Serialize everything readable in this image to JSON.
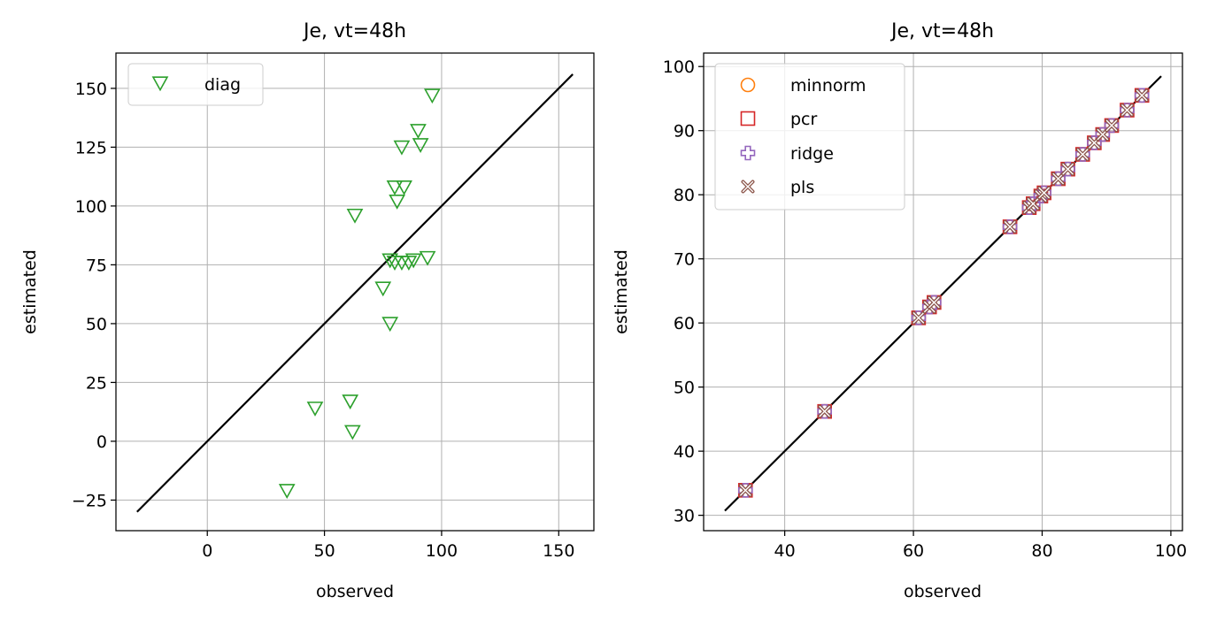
{
  "chart_data": [
    {
      "type": "scatter",
      "title": "Je, vt=48h",
      "xlabel": "observed",
      "ylabel": "estimated",
      "xlim": [
        -39,
        165
      ],
      "ylim": [
        -38,
        165
      ],
      "xticks": [
        0,
        50,
        100,
        150
      ],
      "yticks": [
        -25,
        0,
        25,
        50,
        75,
        100,
        125,
        150
      ],
      "tick_labels_x": [
        "0",
        "50",
        "100",
        "150"
      ],
      "tick_labels_y": [
        "−25",
        "0",
        "25",
        "50",
        "75",
        "100",
        "125",
        "150"
      ],
      "grid": true,
      "legend_position": "upper-left",
      "identity_line": [
        -30,
        156
      ],
      "series": [
        {
          "name": "diag",
          "marker": "triangle-down",
          "color": "#2ca02c",
          "x": [
            96,
            90,
            91,
            83,
            80,
            84,
            81,
            63,
            78,
            80,
            83,
            86,
            88,
            94,
            75,
            78,
            46,
            61,
            62,
            34
          ],
          "y": [
            147,
            132,
            126,
            125,
            108,
            108,
            102,
            96,
            77,
            76,
            76,
            76,
            77,
            78,
            65,
            50,
            14,
            17,
            4,
            -21
          ]
        }
      ]
    },
    {
      "type": "scatter",
      "title": "Je, vt=48h",
      "xlabel": "observed",
      "ylabel": "estimated",
      "xlim": [
        27.4,
        101.8
      ],
      "ylim": [
        27.6,
        102.1
      ],
      "xticks": [
        40,
        60,
        80,
        100
      ],
      "yticks": [
        30,
        40,
        50,
        60,
        70,
        80,
        90,
        100
      ],
      "tick_labels_x": [
        "40",
        "60",
        "80",
        "100"
      ],
      "tick_labels_y": [
        "30",
        "40",
        "50",
        "60",
        "70",
        "80",
        "90",
        "100"
      ],
      "grid": true,
      "legend_position": "upper-left",
      "identity_line": [
        30.7,
        98.5
      ],
      "x": [
        33.9,
        46.2,
        60.8,
        62.5,
        63.2,
        75.0,
        78.0,
        78.6,
        79.8,
        80.3,
        82.5,
        84.0,
        86.3,
        88.1,
        89.4,
        90.8,
        93.2,
        95.5
      ],
      "series": [
        {
          "name": "minnorm",
          "marker": "circle",
          "color": "#ff7f0e",
          "y": [
            33.9,
            46.2,
            60.8,
            62.5,
            63.2,
            75.0,
            78.0,
            78.6,
            79.8,
            80.3,
            82.5,
            84.0,
            86.3,
            88.1,
            89.4,
            90.8,
            93.2,
            95.5
          ]
        },
        {
          "name": "pcr",
          "marker": "square",
          "color": "#d62728",
          "y": [
            33.9,
            46.2,
            60.8,
            62.5,
            63.2,
            75.0,
            78.0,
            78.6,
            79.8,
            80.3,
            82.5,
            84.0,
            86.3,
            88.1,
            89.4,
            90.8,
            93.2,
            95.5
          ]
        },
        {
          "name": "ridge",
          "marker": "plus",
          "color": "#9467bd",
          "y": [
            33.9,
            46.2,
            60.8,
            62.5,
            63.2,
            75.0,
            78.0,
            78.6,
            79.8,
            80.3,
            82.5,
            84.0,
            86.3,
            88.1,
            89.4,
            90.8,
            93.2,
            95.5
          ]
        },
        {
          "name": "pls",
          "marker": "x",
          "color": "#8c564b",
          "y": [
            33.9,
            46.2,
            60.8,
            62.5,
            63.2,
            75.0,
            78.0,
            78.6,
            79.8,
            80.3,
            82.5,
            84.0,
            86.3,
            88.1,
            89.4,
            90.8,
            93.2,
            95.5
          ]
        }
      ]
    }
  ]
}
